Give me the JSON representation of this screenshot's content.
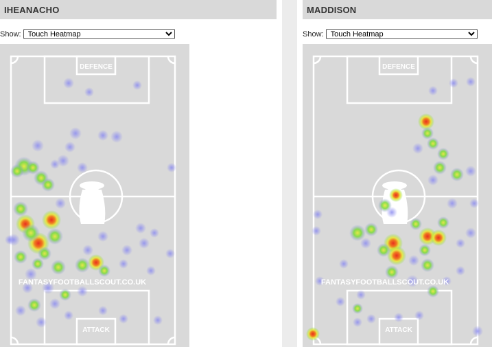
{
  "panels": [
    {
      "player": "IHEANACHO",
      "show_label": "Show:",
      "view_selected": "Touch Heatmap",
      "pitch": {
        "top_label": "DEFENCE",
        "bottom_label": "ATTACK",
        "watermark": "FANTASYFOOTBALLSCOUT.CO.UK"
      }
    },
    {
      "player": "MADDISON",
      "show_label": "Show:",
      "view_selected": "Touch Heatmap",
      "pitch": {
        "top_label": "DEFENCE",
        "bottom_label": "ATTACK",
        "watermark": "FANTASYFOOTBALLSCOUT.CO.UK"
      }
    }
  ],
  "colors": {
    "header_bg": "#d9d9d9",
    "pitch_bg": "#d9d9d9",
    "pitch_lines": "#ffffff",
    "heat_low": "#8c8cf0",
    "heat_mid": "#7ddc3c",
    "heat_high": "#e8e83a",
    "heat_peak": "#e83020"
  },
  "icons": {
    "pitch_center": "player-silhouette-icon"
  }
}
